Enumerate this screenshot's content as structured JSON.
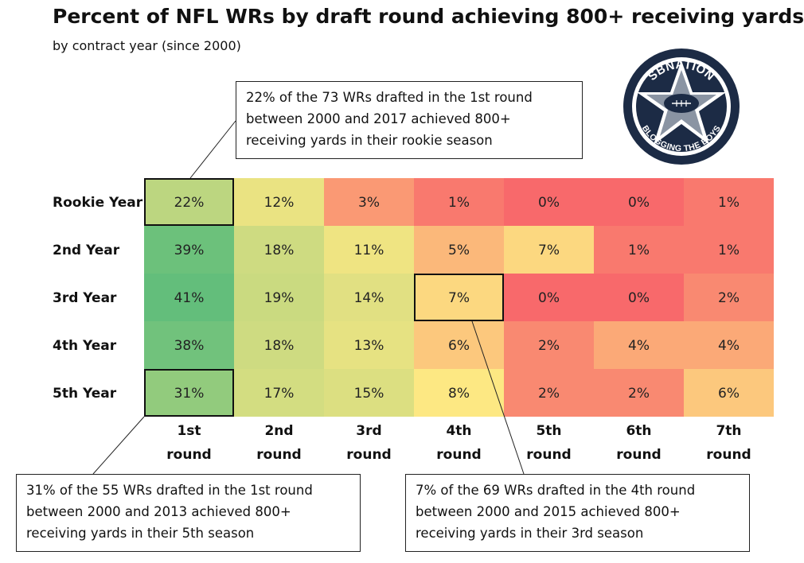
{
  "title": "Percent of NFL WRs by draft round achieving 800+ receiving yards",
  "subtitle": "by contract year (since 2000)",
  "logo": {
    "top_text": "SBNATION",
    "bottom_text": "BLOGGING THE BOYS",
    "icon": "star-football-icon"
  },
  "colors": {
    "green": "#63be7b",
    "yellow": "#fde883",
    "red": "#f8696b"
  },
  "chart_data": {
    "type": "heatmap",
    "title": "Percent of NFL WRs by draft round achieving 800+ receiving yards",
    "subtitle": "by contract year (since 2000)",
    "rows": [
      "Rookie Year",
      "2nd Year",
      "3rd Year",
      "4th Year",
      "5th Year"
    ],
    "columns": [
      [
        "1st",
        "round"
      ],
      [
        "2nd",
        "round"
      ],
      [
        "3rd",
        "round"
      ],
      [
        "4th",
        "round"
      ],
      [
        "5th",
        "round"
      ],
      [
        "6th",
        "round"
      ],
      [
        "7th",
        "round"
      ]
    ],
    "values": [
      [
        22,
        12,
        3,
        1,
        0,
        0,
        1
      ],
      [
        39,
        18,
        11,
        5,
        7,
        1,
        1
      ],
      [
        41,
        19,
        14,
        7,
        0,
        0,
        2
      ],
      [
        38,
        18,
        13,
        6,
        2,
        4,
        4
      ],
      [
        31,
        17,
        15,
        8,
        2,
        2,
        6
      ]
    ],
    "value_suffix": "%",
    "highlights": [
      {
        "row": 0,
        "col": 0
      },
      {
        "row": 2,
        "col": 3
      },
      {
        "row": 4,
        "col": 0
      }
    ],
    "color_scale": {
      "min": 0,
      "mid": 8,
      "max": 41
    }
  },
  "annotations": {
    "rookie": [
      "22% of the 73 WRs drafted in the 1st round",
      "between 2000 and 2017 achieved 800+",
      "receiving yards in their rookie season"
    ],
    "fifth": [
      "31% of the 55 WRs drafted in the 1st round",
      "between 2000 and 2013 achieved 800+",
      "receiving yards in their 5th season"
    ],
    "fourth": [
      "7% of the 69 WRs drafted in the 4th round",
      "between 2000 and 2015 achieved 800+",
      "receiving yards in their 3rd season"
    ]
  }
}
